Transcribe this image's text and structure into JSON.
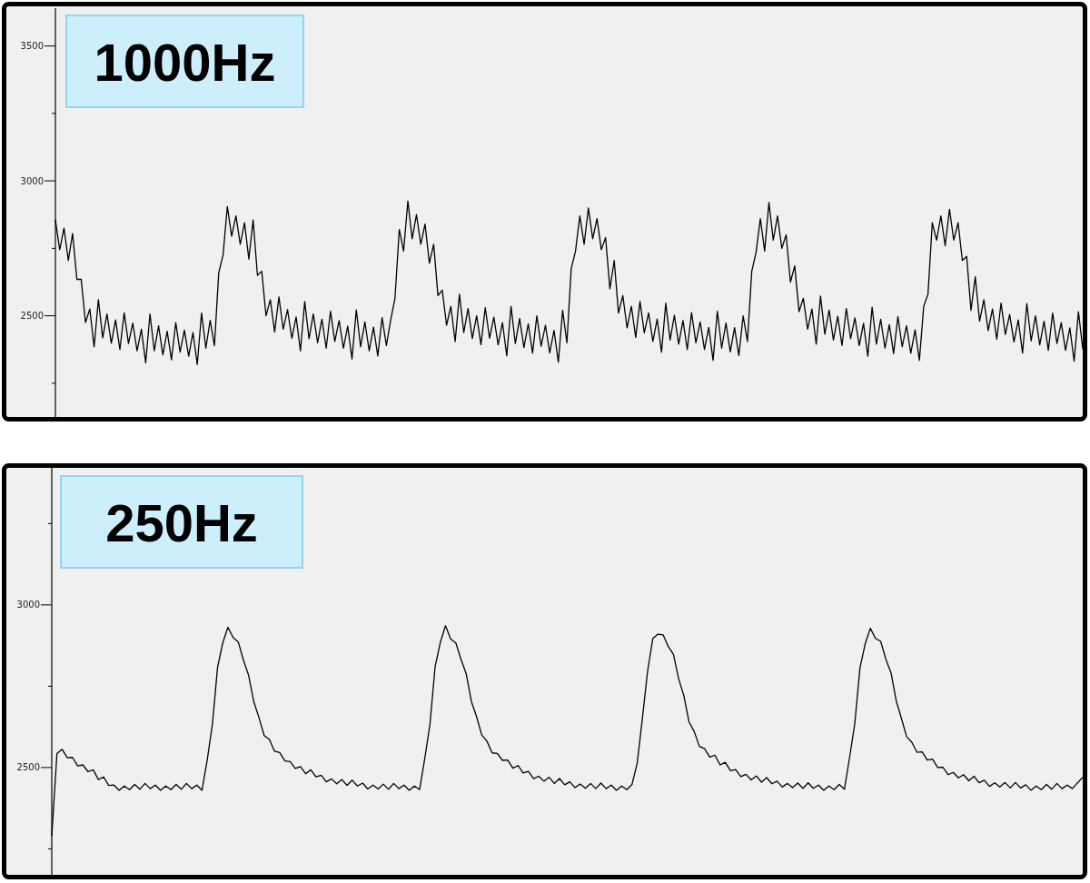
{
  "chart_data": [
    {
      "type": "line",
      "title": "1000Hz",
      "tick_labels": "y",
      "color": "#000000",
      "ylim": [
        2125,
        3640
      ],
      "yticks": [
        {
          "value": 2250,
          "label": null
        },
        2500,
        {
          "value": 2750,
          "label": null
        },
        3000,
        {
          "value": 3250,
          "label": null
        },
        3500
      ],
      "categories": [
        null,
        null,
        null,
        null,
        null,
        null,
        null,
        null,
        null,
        null,
        null,
        null,
        null,
        null,
        null,
        null,
        null,
        null,
        null,
        null,
        null,
        null,
        null,
        null,
        null,
        null,
        null,
        null,
        null,
        null,
        null,
        null,
        null,
        null,
        null,
        null,
        null,
        null,
        null,
        null,
        null,
        null,
        null,
        null,
        null,
        null,
        null,
        null,
        null,
        null,
        null,
        null,
        null,
        null,
        null,
        null,
        null,
        null,
        null,
        null,
        null,
        null,
        null,
        null,
        null,
        null,
        null,
        null,
        null,
        null,
        null,
        null,
        null,
        null,
        null,
        null,
        null,
        null,
        null,
        null,
        null,
        null,
        null,
        null,
        null,
        null,
        null,
        null,
        null,
        null,
        null,
        null,
        null,
        null,
        null,
        null,
        null,
        null,
        null,
        null,
        null,
        null,
        null,
        null,
        null,
        null,
        null,
        null,
        null,
        null,
        null,
        null,
        null,
        null,
        null,
        null,
        null,
        null,
        null,
        null,
        null,
        null,
        null,
        null,
        null,
        null,
        null,
        null,
        null,
        null,
        null,
        null,
        null,
        null,
        null,
        null,
        null,
        null,
        null,
        null,
        null,
        null,
        null,
        null,
        null,
        null,
        null,
        null,
        null,
        null,
        null,
        null,
        null,
        null,
        null,
        null,
        null,
        null,
        null,
        null,
        null,
        null,
        null,
        null,
        null,
        null,
        null,
        null,
        null,
        null,
        null,
        null,
        null,
        null,
        null,
        null,
        null,
        null,
        null,
        null,
        null,
        null,
        null,
        null,
        null,
        null,
        null,
        null,
        null,
        null,
        null,
        null,
        null,
        null,
        null,
        null,
        null,
        null,
        null,
        null,
        null,
        null,
        null,
        null,
        null,
        null,
        null,
        null,
        null,
        null,
        null,
        null,
        null,
        null,
        null,
        null,
        null,
        null,
        null,
        null,
        null,
        null,
        null,
        null,
        null,
        null,
        null,
        null,
        null,
        null,
        null,
        null,
        null,
        null,
        null,
        null,
        null,
        null,
        null,
        null
      ],
      "values": [
        2855,
        2745,
        2825,
        2705,
        2805,
        2635,
        2635,
        2475,
        2525,
        2385,
        2560,
        2418,
        2507,
        2398,
        2485,
        2375,
        2511,
        2397,
        2473,
        2370,
        2450,
        2326,
        2507,
        2370,
        2463,
        2355,
        2443,
        2337,
        2475,
        2365,
        2447,
        2350,
        2438,
        2320,
        2510,
        2380,
        2483,
        2390,
        2660,
        2725,
        2905,
        2795,
        2870,
        2765,
        2845,
        2710,
        2855,
        2650,
        2665,
        2500,
        2560,
        2440,
        2570,
        2450,
        2523,
        2417,
        2496,
        2370,
        2553,
        2415,
        2507,
        2400,
        2487,
        2380,
        2517,
        2405,
        2482,
        2380,
        2462,
        2340,
        2522,
        2385,
        2477,
        2370,
        2458,
        2351,
        2493,
        2390,
        2485,
        2565,
        2820,
        2740,
        2925,
        2785,
        2875,
        2765,
        2840,
        2695,
        2765,
        2575,
        2595,
        2465,
        2535,
        2405,
        2580,
        2438,
        2527,
        2416,
        2500,
        2393,
        2530,
        2417,
        2495,
        2392,
        2475,
        2352,
        2535,
        2397,
        2490,
        2382,
        2470,
        2362,
        2500,
        2387,
        2465,
        2363,
        2446,
        2328,
        2520,
        2400,
        2675,
        2740,
        2870,
        2765,
        2900,
        2785,
        2860,
        2745,
        2790,
        2600,
        2705,
        2510,
        2575,
        2455,
        2535,
        2420,
        2553,
        2437,
        2511,
        2405,
        2488,
        2365,
        2547,
        2410,
        2502,
        2395,
        2482,
        2375,
        2512,
        2400,
        2477,
        2375,
        2457,
        2335,
        2517,
        2380,
        2473,
        2366,
        2456,
        2353,
        2500,
        2405,
        2665,
        2735,
        2860,
        2740,
        2920,
        2780,
        2870,
        2750,
        2800,
        2625,
        2685,
        2515,
        2565,
        2450,
        2525,
        2395,
        2573,
        2432,
        2521,
        2410,
        2498,
        2390,
        2527,
        2415,
        2492,
        2390,
        2472,
        2350,
        2532,
        2395,
        2487,
        2380,
        2467,
        2360,
        2497,
        2385,
        2463,
        2361,
        2448,
        2335,
        2535,
        2580,
        2845,
        2780,
        2870,
        2760,
        2895,
        2780,
        2845,
        2705,
        2720,
        2520,
        2645,
        2480,
        2560,
        2445,
        2525,
        2413,
        2547,
        2431,
        2505,
        2403,
        2485,
        2362,
        2545,
        2407,
        2500,
        2392,
        2480,
        2372,
        2510,
        2397,
        2475,
        2372,
        2455,
        2332,
        2515,
        2378
      ]
    },
    {
      "type": "line",
      "title": "250Hz",
      "tick_labels": "y",
      "color": "#000000",
      "ylim": [
        2170,
        3427
      ],
      "yticks": [
        {
          "value": 2250,
          "label": null
        },
        2500,
        {
          "value": 2750,
          "label": null
        },
        3000,
        {
          "value": 3250,
          "label": null
        }
      ],
      "categories": [
        null,
        null,
        null,
        null,
        null,
        null,
        null,
        null,
        null,
        null,
        null,
        null,
        null,
        null,
        null,
        null,
        null,
        null,
        null,
        null,
        null,
        null,
        null,
        null,
        null,
        null,
        null,
        null,
        null,
        null,
        null,
        null,
        null,
        null,
        null,
        null,
        null,
        null,
        null,
        null,
        null,
        null,
        null,
        null,
        null,
        null,
        null,
        null,
        null,
        null,
        null,
        null,
        null,
        null,
        null,
        null,
        null,
        null,
        null,
        null,
        null,
        null,
        null,
        null,
        null,
        null,
        null,
        null,
        null,
        null,
        null,
        null,
        null,
        null,
        null,
        null,
        null,
        null,
        null,
        null,
        null,
        null,
        null,
        null,
        null,
        null,
        null,
        null,
        null,
        null,
        null,
        null,
        null,
        null,
        null,
        null,
        null,
        null,
        null,
        null,
        null,
        null,
        null,
        null,
        null,
        null,
        null,
        null,
        null,
        null,
        null,
        null,
        null,
        null,
        null,
        null,
        null,
        null,
        null,
        null,
        null,
        null,
        null,
        null,
        null,
        null,
        null,
        null,
        null,
        null,
        null,
        null,
        null,
        null,
        null,
        null,
        null,
        null,
        null,
        null,
        null,
        null,
        null,
        null,
        null,
        null,
        null,
        null,
        null,
        null,
        null,
        null,
        null,
        null,
        null,
        null,
        null,
        null,
        null,
        null,
        null,
        null,
        null,
        null,
        null,
        null,
        null,
        null,
        null,
        null,
        null,
        null,
        null,
        null,
        null,
        null,
        null,
        null,
        null,
        null,
        null,
        null,
        null,
        null,
        null,
        null,
        null,
        null,
        null,
        null,
        null,
        null,
        null,
        null,
        null,
        null,
        null,
        null,
        null,
        null
      ],
      "values": [
        2290,
        2543,
        2556,
        2530,
        2531,
        2505,
        2508,
        2487,
        2493,
        2463,
        2471,
        2445,
        2446,
        2430,
        2443,
        2432,
        2448,
        2433,
        2451,
        2435,
        2446,
        2430,
        2443,
        2432,
        2448,
        2433,
        2451,
        2435,
        2446,
        2430,
        2523,
        2632,
        2808,
        2883,
        2931,
        2900,
        2886,
        2830,
        2783,
        2702,
        2653,
        2598,
        2586,
        2550,
        2546,
        2520,
        2518,
        2497,
        2503,
        2481,
        2493,
        2471,
        2476,
        2456,
        2465,
        2450,
        2463,
        2445,
        2461,
        2443,
        2452,
        2434,
        2446,
        2434,
        2449,
        2433,
        2451,
        2435,
        2446,
        2430,
        2443,
        2432,
        2528,
        2633,
        2811,
        2885,
        2936,
        2895,
        2883,
        2832,
        2788,
        2703,
        2656,
        2600,
        2581,
        2545,
        2543,
        2522,
        2523,
        2498,
        2506,
        2483,
        2488,
        2466,
        2473,
        2458,
        2470,
        2451,
        2466,
        2447,
        2456,
        2438,
        2449,
        2436,
        2451,
        2435,
        2452,
        2435,
        2446,
        2430,
        2443,
        2432,
        2448,
        2513,
        2651,
        2795,
        2896,
        2910,
        2908,
        2872,
        2848,
        2773,
        2721,
        2640,
        2611,
        2565,
        2558,
        2532,
        2538,
        2508,
        2516,
        2490,
        2494,
        2472,
        2479,
        2462,
        2474,
        2455,
        2469,
        2450,
        2458,
        2440,
        2451,
        2438,
        2452,
        2436,
        2453,
        2436,
        2446,
        2430,
        2443,
        2432,
        2448,
        2433,
        2531,
        2635,
        2806,
        2880,
        2928,
        2897,
        2888,
        2833,
        2791,
        2705,
        2651,
        2595,
        2578,
        2547,
        2548,
        2523,
        2526,
        2500,
        2501,
        2478,
        2485,
        2468,
        2478,
        2459,
        2473,
        2453,
        2461,
        2442,
        2453,
        2440,
        2454,
        2437,
        2454,
        2437,
        2447,
        2430,
        2443,
        2432,
        2448,
        2433,
        2451,
        2435,
        2446,
        2435,
        2453,
        2470
      ]
    }
  ]
}
